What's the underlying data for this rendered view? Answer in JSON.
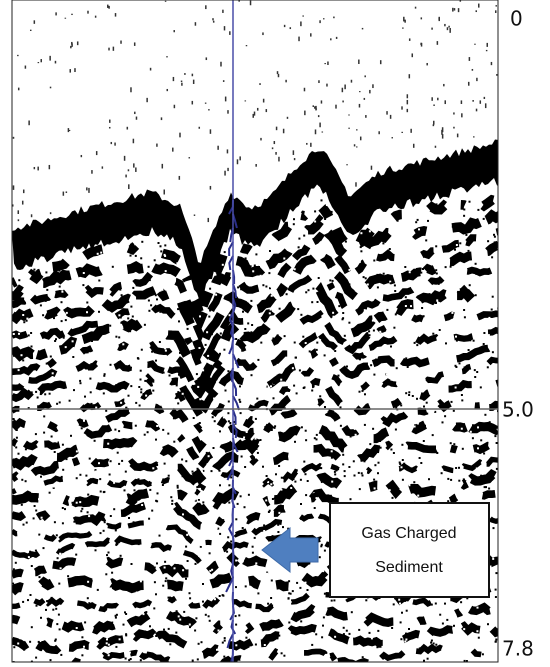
{
  "depth_labels": [
    "0",
    "5.0",
    "7.8"
  ],
  "annotation": {
    "lines": [
      "Gas Charged",
      "Sediment"
    ]
  }
}
